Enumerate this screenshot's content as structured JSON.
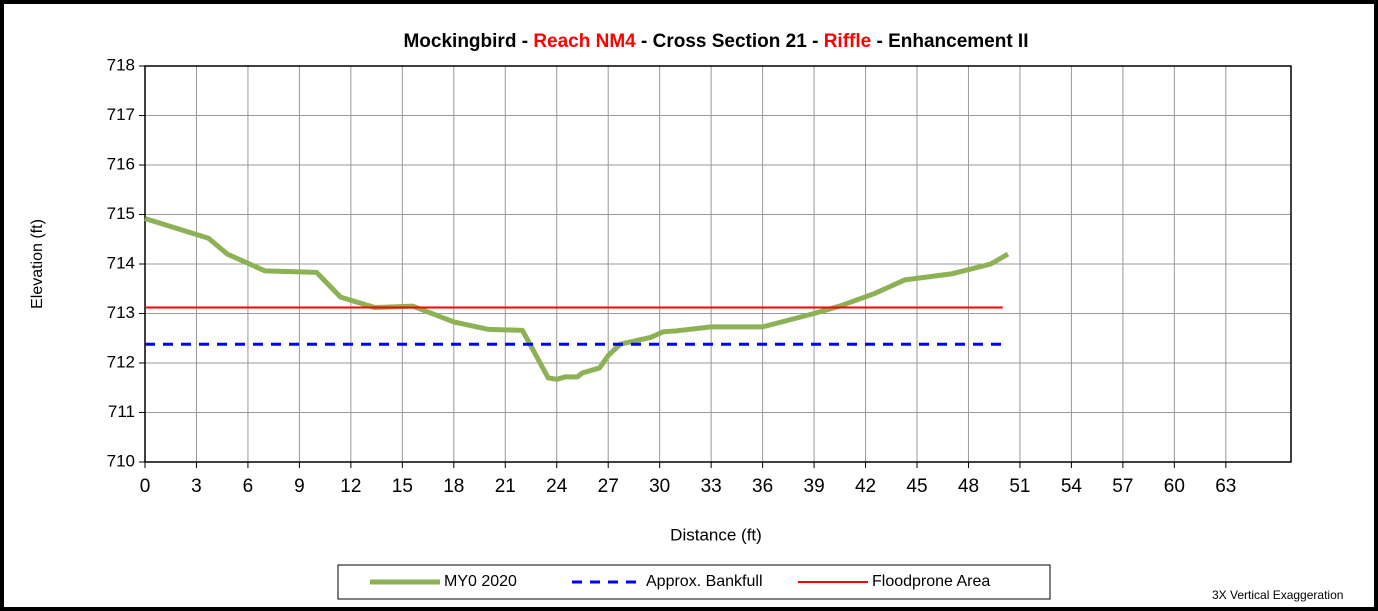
{
  "chart_data": {
    "type": "line",
    "title_parts": [
      {
        "text": "Mockingbird - ",
        "color": "#000000"
      },
      {
        "text": "Reach NM4",
        "color": "#ff0000"
      },
      {
        "text": " - Cross Section 21 - ",
        "color": "#000000"
      },
      {
        "text": "Riffle",
        "color": "#ff0000"
      },
      {
        "text": " - Enhancement II",
        "color": "#000000"
      }
    ],
    "x_label": "Distance (ft)",
    "y_label": "Elevation (ft)",
    "annotation": "3X Vertical Exaggeration",
    "xlim": [
      0,
      66.8
    ],
    "xticks": [
      0,
      3,
      6,
      9,
      12,
      15,
      18,
      21,
      24,
      27,
      30,
      33,
      36,
      39,
      42,
      45,
      48,
      51,
      54,
      57,
      60,
      63
    ],
    "ylim": [
      710,
      718
    ],
    "yticks": [
      710,
      711,
      712,
      713,
      714,
      715,
      716,
      717,
      718
    ],
    "grid": true,
    "legend": "bottom",
    "series": [
      {
        "name": "MY0 2020",
        "color": "#8db255",
        "width": 5,
        "dash": "",
        "x": [
          0,
          3.7,
          4.8,
          7,
          10,
          11.4,
          13.4,
          15.6,
          18,
          20,
          22,
          23.5,
          24,
          24.5,
          25.2,
          25.5,
          26.5,
          27,
          27.7,
          29.5,
          30.2,
          31,
          33,
          36,
          39,
          40.5,
          42.5,
          44.3,
          47,
          49.3,
          50.3
        ],
        "values": [
          714.92,
          714.52,
          714.2,
          713.86,
          713.83,
          713.33,
          713.12,
          713.15,
          712.83,
          712.68,
          712.66,
          711.7,
          711.67,
          711.72,
          711.72,
          711.8,
          711.9,
          712.15,
          712.38,
          712.52,
          712.63,
          712.65,
          712.73,
          712.73,
          713.0,
          713.15,
          713.4,
          713.68,
          713.8,
          714.0,
          714.2
        ]
      },
      {
        "name": "Approx. Bankfull",
        "color": "#0000ff",
        "width": 3,
        "dash": "10,8",
        "x": [
          0,
          50
        ],
        "values": [
          712.38,
          712.38
        ]
      },
      {
        "name": "Floodprone Area",
        "color": "#ff0000",
        "width": 2,
        "dash": "",
        "x": [
          0,
          50
        ],
        "values": [
          713.12,
          713.12
        ]
      }
    ]
  }
}
